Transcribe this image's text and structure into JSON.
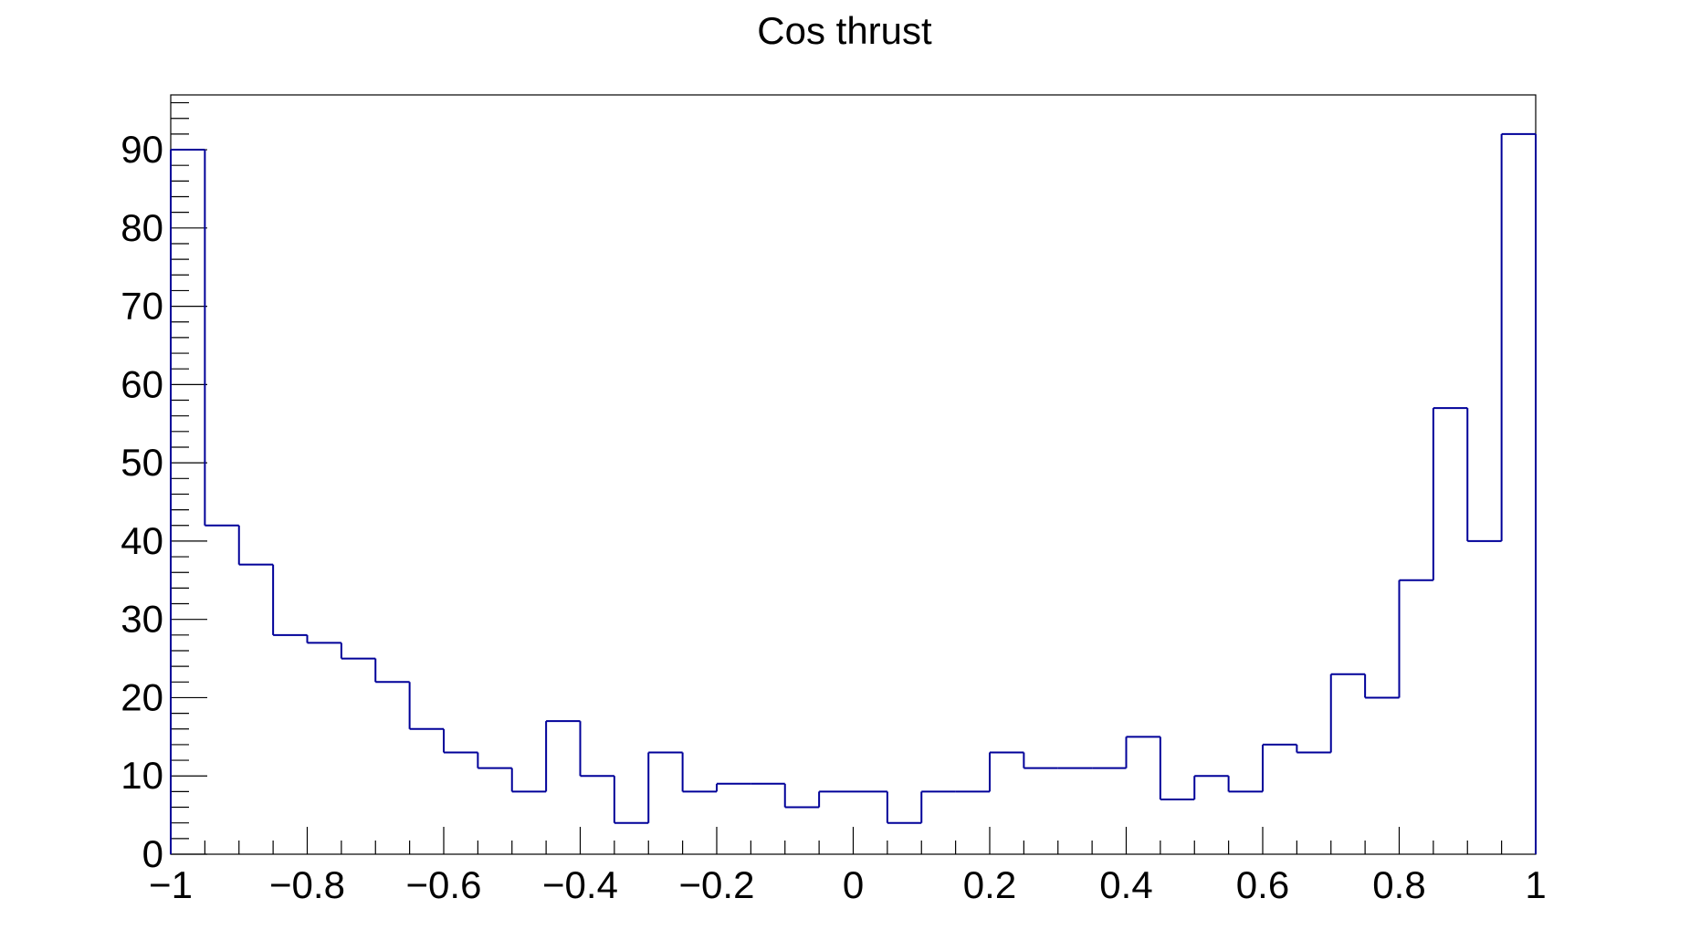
{
  "chart_data": {
    "type": "histogram",
    "title": "Cos thrust",
    "xlabel": "",
    "ylabel": "",
    "xlim": [
      -1,
      1
    ],
    "ylim": [
      0,
      97
    ],
    "grid": false,
    "line_color": "#000099",
    "bin_width": 0.05,
    "x_tick_values": [
      -1,
      -0.8,
      -0.6,
      -0.4,
      -0.2,
      0,
      0.2,
      0.4,
      0.6,
      0.8,
      1
    ],
    "x_tick_labels": [
      "−1",
      "−0.8",
      "−0.6",
      "−0.4",
      "−0.2",
      "0",
      "0.2",
      "0.4",
      "0.6",
      "0.8",
      "1"
    ],
    "y_tick_values": [
      0,
      10,
      20,
      30,
      40,
      50,
      60,
      70,
      80,
      90
    ],
    "y_tick_labels": [
      "0",
      "10",
      "20",
      "30",
      "40",
      "50",
      "60",
      "70",
      "80",
      "90"
    ],
    "bin_edges_start": -1,
    "values": [
      90,
      42,
      37,
      28,
      27,
      25,
      22,
      16,
      13,
      11,
      8,
      17,
      10,
      4,
      13,
      8,
      9,
      9,
      6,
      8,
      8,
      4,
      8,
      8,
      13,
      11,
      11,
      11,
      15,
      7,
      10,
      8,
      14,
      13,
      23,
      20,
      35,
      57,
      40,
      92
    ]
  }
}
